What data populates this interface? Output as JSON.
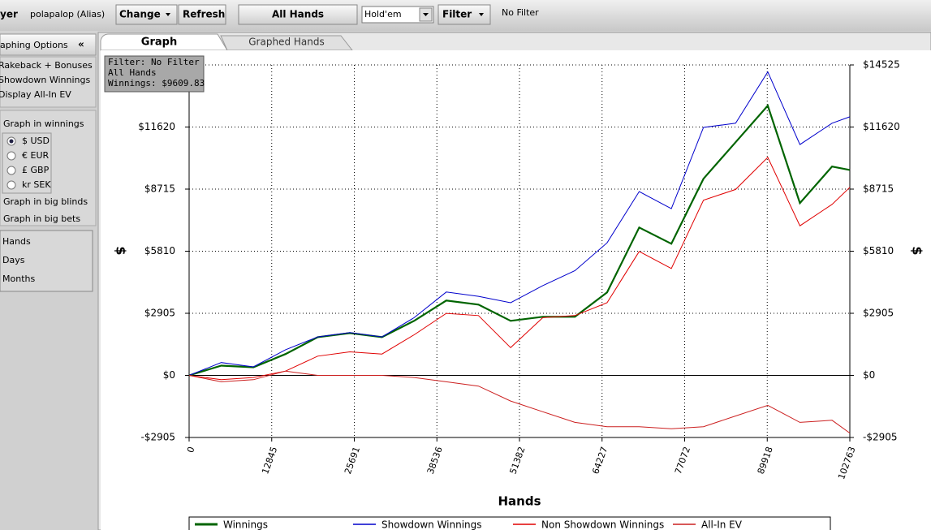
{
  "toolbar": {
    "player_label": "yer",
    "player": "polapalop (Alias)",
    "buttons": [
      "Change",
      "Refresh",
      "All Hands"
    ],
    "game": "Hold'em",
    "filter_button": "Filter",
    "filter_status": "No Filter"
  },
  "sidebar": {
    "title": "aphing Options",
    "collapse": "«",
    "options": [
      "Rakeback + Bonuses",
      "Showdown Winnings",
      "Display All-In EV"
    ],
    "winnings_heading": "Graph in winnings",
    "currencies": [
      "$ USD",
      "€ EUR",
      "£ GBP",
      "kr SEK"
    ],
    "selected_currency": 0,
    "big_blinds": "Graph in big blinds",
    "big_bets": "Graph in big bets",
    "periods": [
      "Hands",
      "Days",
      "Months"
    ]
  },
  "tabs": [
    "Graph",
    "Graphed Hands"
  ],
  "chart_data": {
    "type": "line",
    "x_label": "Hands",
    "y_label": "$",
    "y2_label": "$",
    "annotation": [
      "Filter: No Filter",
      "All Hands",
      "Winnings: $9609.83"
    ],
    "x": [
      0,
      5000,
      10000,
      15000,
      20000,
      25000,
      30000,
      35000,
      40000,
      45000,
      50000,
      55000,
      60000,
      65000,
      70000,
      75000,
      80000,
      85000,
      90000,
      95000,
      100000,
      102763
    ],
    "xlim": [
      0,
      102763
    ],
    "xticks": [
      0,
      12845,
      25691,
      38536,
      51382,
      64227,
      77072,
      89918,
      102763
    ],
    "ylim": [
      -2905,
      14525
    ],
    "yticks": [
      {
        "value": -2905,
        "label": "-$2905"
      },
      {
        "value": 0,
        "label": "$0"
      },
      {
        "value": 2905,
        "label": "$2905"
      },
      {
        "value": 5810,
        "label": "$5810"
      },
      {
        "value": 8715,
        "label": "$8715"
      },
      {
        "value": 11620,
        "label": "$11620"
      },
      {
        "value": 14525,
        "label": "$14525"
      }
    ],
    "y2lim": [
      -2905,
      14525
    ],
    "y2ticks": [
      {
        "value": -2905,
        "label": "-$2905"
      },
      {
        "value": 0,
        "label": "$0"
      },
      {
        "value": 2905,
        "label": "$2905"
      },
      {
        "value": 5810,
        "label": "$5810"
      },
      {
        "value": 8715,
        "label": "$8715"
      },
      {
        "value": 11620,
        "label": "$11620"
      },
      {
        "value": 14525,
        "label": "$14525"
      }
    ],
    "grid": true,
    "legend": "bottom",
    "series": [
      {
        "name": "Winnings",
        "color": "#006400",
        "values": [
          0,
          456,
          380,
          1000,
          1787,
          1977,
          1787,
          2550,
          3500,
          3310,
          2550,
          2740,
          2740,
          3880,
          6920,
          6160,
          9200,
          10910,
          12620,
          8060,
          9770,
          9610
        ]
      },
      {
        "name": "Showdown Winnings",
        "color": "#0000cc",
        "values": [
          0,
          600,
          400,
          1200,
          1800,
          2000,
          1800,
          2700,
          3900,
          3700,
          3400,
          4200,
          4900,
          6200,
          8600,
          7800,
          11600,
          11800,
          14200,
          10800,
          11800,
          12100
        ]
      },
      {
        "name": "Non Showdown Winnings",
        "color": "#e00000",
        "values": [
          0,
          -200,
          -100,
          200,
          900,
          1100,
          1000,
          1900,
          2900,
          2800,
          1300,
          2700,
          2800,
          3400,
          5800,
          5000,
          8200,
          8700,
          10200,
          7000,
          8000,
          8800
        ]
      },
      {
        "name": "All-In EV",
        "color": "#cc2020",
        "values": [
          0,
          -300,
          -200,
          200,
          0,
          0,
          0,
          -100,
          -300,
          -500,
          -1200,
          -1700,
          -2200,
          -2400,
          -2400,
          -2500,
          -2400,
          -1900,
          -1400,
          -2200,
          -2100,
          -2700
        ]
      }
    ]
  }
}
